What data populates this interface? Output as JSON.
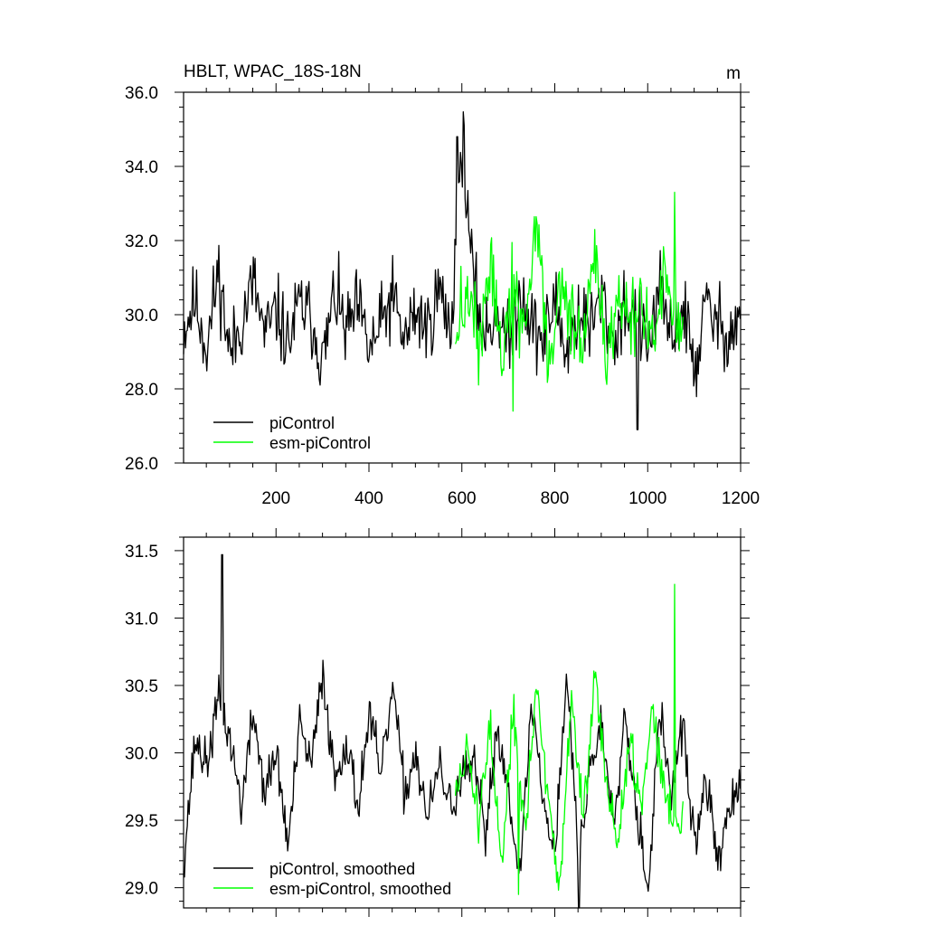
{
  "chart_data": [
    {
      "type": "line",
      "title": "HBLT, WPAC_18S-18N",
      "units": "m",
      "xlim": [
        1,
        1200
      ],
      "ylim": [
        26.0,
        36.0
      ],
      "xticks": [
        200,
        400,
        600,
        800,
        1000,
        1200
      ],
      "xtick_labels": [
        "200",
        "400",
        "600",
        "800",
        "1000",
        "1200"
      ],
      "yticks": [
        26.0,
        28.0,
        30.0,
        32.0,
        34.0,
        36.0
      ],
      "ytick_labels": [
        "26.0",
        "28.0",
        "30.0",
        "32.0",
        "34.0",
        "36.0"
      ],
      "legend_position": "bottom-left",
      "series": [
        {
          "name": "piControl",
          "color": "#000000",
          "x_range": [
            1,
            1200
          ],
          "x_step": 25,
          "mean": 29.8,
          "values": [
            29.6,
            30.4,
            29.1,
            31.2,
            28.9,
            29.8,
            30.9,
            29.4,
            30.1,
            29.2,
            30.3,
            29.9,
            28.7,
            30.6,
            29.5,
            30.2,
            29.0,
            29.7,
            30.5,
            29.3,
            30.1,
            29.6,
            30.7,
            29.5,
            34.8,
            30.6,
            29.4,
            30.2,
            29.1,
            30.8,
            29.7,
            29.3,
            30.4,
            28.9,
            30.1,
            29.6,
            30.5,
            29.2,
            30.3,
            29.8,
            29.1,
            30.6,
            29.4,
            30.2,
            28.5,
            30.3,
            29.7,
            29.5,
            30.0
          ],
          "extrema": {
            "max": 34.8,
            "max_x": 590,
            "min": 26.9,
            "min_x": 978
          }
        },
        {
          "name": "esm-piControl",
          "color": "#00ff00",
          "x_range": [
            586,
            1076
          ],
          "x_step": 25,
          "mean": 29.8,
          "values": [
            29.5,
            30.6,
            29.2,
            31.4,
            28.8,
            30.9,
            29.4,
            32.7,
            28.6,
            30.8,
            29.9,
            29.1,
            31.5,
            28.7,
            30.6,
            29.6,
            30.2,
            29.3,
            31.1,
            29.7
          ],
          "extrema": {
            "max": 33.3,
            "max_x": 1058,
            "min": 27.4,
            "min_x": 710
          }
        }
      ]
    },
    {
      "type": "line",
      "title": "",
      "xlim": [
        1,
        1200
      ],
      "ylim": [
        28.85,
        31.6
      ],
      "xticks": [
        200,
        400,
        600,
        800,
        1000,
        1200
      ],
      "yticks": [
        29.0,
        29.5,
        30.0,
        30.5,
        31.0,
        31.5
      ],
      "ytick_labels": [
        "29.0",
        "29.5",
        "30.0",
        "30.5",
        "31.0",
        "31.5"
      ],
      "legend_position": "bottom-left",
      "series": [
        {
          "name": "piControl, smoothed",
          "color": "#000000",
          "x_range": [
            1,
            1200
          ],
          "x_step": 25,
          "values": [
            29.2,
            30.1,
            29.9,
            30.4,
            30.1,
            29.6,
            30.3,
            29.7,
            30.0,
            29.3,
            30.2,
            29.9,
            30.6,
            29.8,
            30.1,
            29.6,
            30.3,
            29.8,
            30.5,
            29.7,
            30.0,
            29.5,
            29.9,
            29.6,
            29.8,
            29.9,
            29.4,
            30.2,
            29.7,
            29.1,
            30.4,
            29.6,
            29.3,
            30.6,
            29.2,
            29.9,
            30.2,
            29.5,
            30.3,
            29.6,
            29.0,
            30.3,
            29.7,
            30.2,
            29.3,
            29.8,
            29.2,
            29.6,
            29.7
          ],
          "extrema": {
            "max": 31.47,
            "max_x": 84,
            "min": 28.85,
            "min_x": 852
          }
        },
        {
          "name": "esm-piControl, smoothed",
          "color": "#00ff00",
          "x_range": [
            586,
            1076
          ],
          "x_step": 25,
          "values": [
            29.7,
            30.0,
            29.5,
            30.2,
            29.1,
            30.3,
            29.4,
            30.5,
            29.6,
            29.0,
            30.4,
            29.5,
            30.6,
            29.8,
            29.3,
            30.1,
            29.6,
            30.4,
            29.7,
            29.5
          ],
          "extrema": {
            "max": 31.25,
            "max_x": 1058,
            "min": 28.95,
            "min_x": 722
          }
        }
      ]
    }
  ]
}
